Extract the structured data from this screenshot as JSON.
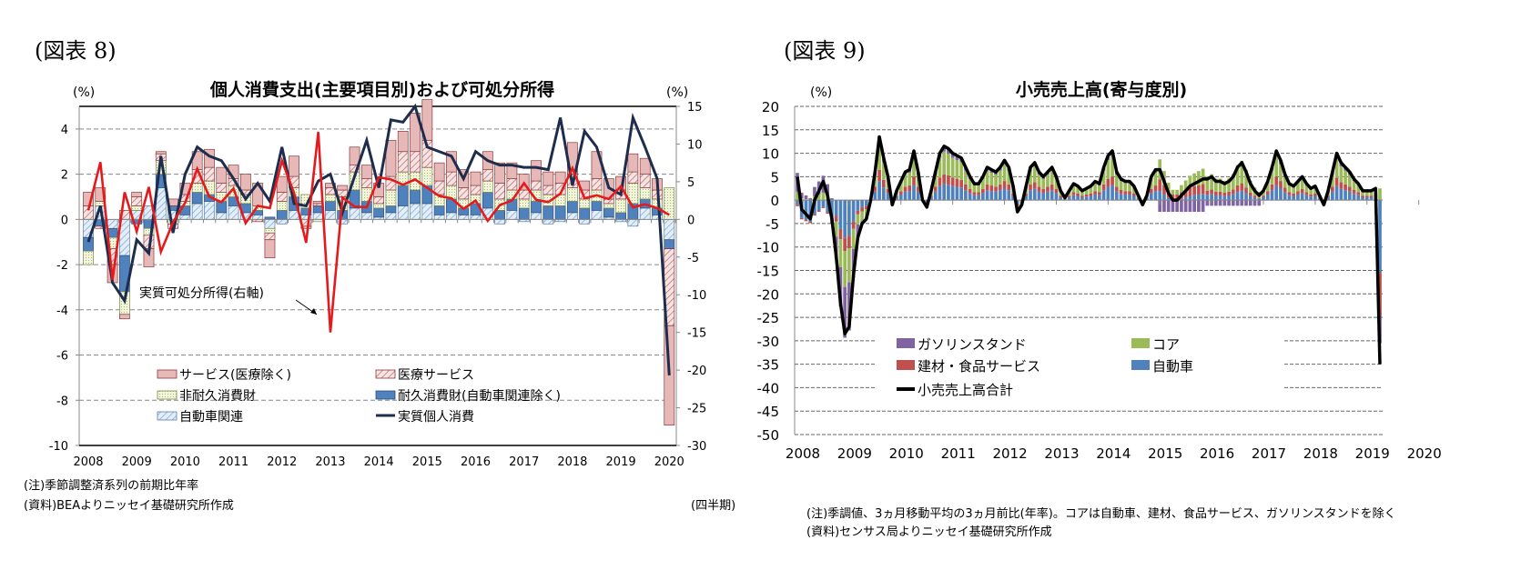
{
  "left": {
    "fig_label": "(図表 8)",
    "title": "個人消費支出(主要項目別)および可処分所得",
    "left_unit": "(%)",
    "right_unit": "(%)",
    "annotation": "実質可処分所得(右軸)",
    "note1": "(注)季節調整済系列の前期比年率",
    "note2": "(資料)BEAよりニッセイ基礎研究所作成",
    "period_label": "(四半期)"
  },
  "right": {
    "fig_label": "(図表 9)",
    "title": "小売売上高(寄与度別)",
    "unit": "(%)",
    "note1": "(注)季調値、3ヵ月移動平均の3ヵ月前比(年率)。コアは自動車、建材、食品サービス、ガソリンスタンドを除く",
    "note2": "(資料)センサス局よりニッセイ基礎研究所作成"
  },
  "chart_data": [
    {
      "type": "bar",
      "stacked": true,
      "title": "個人消費支出(主要項目別)および可処分所得",
      "frequency": "quarterly",
      "x_start": "2008Q1",
      "x_ticks": [
        "2008",
        "2009",
        "2010",
        "2011",
        "2012",
        "2013",
        "2014",
        "2015",
        "2016",
        "2017",
        "2018",
        "2019",
        "2020"
      ],
      "ylim": [
        -10,
        5
      ],
      "yticks": [
        -10,
        -8,
        -6,
        -4,
        -2,
        0,
        2,
        4
      ],
      "y2lim": [
        -30,
        15
      ],
      "y2ticks": [
        -30,
        -25,
        -20,
        -15,
        -10,
        -5,
        0,
        5,
        10,
        15
      ],
      "ylabel": "(%)",
      "y2label": "(%)",
      "xlabel": "(四半期)",
      "grid": true,
      "legend_position": "bottom-inside",
      "series": [
        {
          "name": "自動車関連",
          "color": "#c7dcef",
          "pattern": "hatch-blue",
          "values": [
            -0.8,
            0.6,
            -0.4,
            -1.6,
            0.4,
            0.6,
            1.4,
            0.4,
            0.2,
            0.7,
            0.8,
            0.3,
            0.6,
            0.3,
            0.2,
            -0.4,
            -0.2,
            0.4,
            0.2,
            0.3,
            0.4,
            -0.2,
            0.5,
            0.3,
            0.1,
            0.3,
            0.6,
            0.7,
            0.7,
            0.2,
            0.3,
            0.2,
            0.2,
            0.5,
            -0.2,
            0.4,
            -0.1,
            0.3,
            -0.2,
            -0.1,
            0.3,
            -0.2,
            0.4,
            0.1,
            -0.1,
            -0.3,
            0.5,
            0.2,
            -0.9
          ]
        },
        {
          "name": "耐久消費財(自動車関連除く)",
          "color": "#4f81bd",
          "pattern": "solid",
          "values": [
            -0.6,
            -0.3,
            -0.4,
            -1.6,
            -0.2,
            -0.4,
            0.6,
            0.2,
            0.4,
            0.5,
            0.3,
            0.5,
            0.4,
            0.4,
            0.2,
            0.1,
            0.4,
            0.6,
            0.3,
            0.3,
            0.4,
            0.4,
            0.8,
            0.5,
            0.4,
            0.3,
            0.9,
            0.6,
            0.8,
            0.4,
            0.6,
            0.3,
            0.5,
            0.7,
            0.4,
            0.5,
            0.5,
            0.5,
            0.6,
            0.6,
            0.5,
            0.5,
            0.4,
            0.4,
            0.3,
            0.7,
            0.4,
            0.3,
            -0.4
          ]
        },
        {
          "name": "非耐久消費財",
          "color": "#eef3d9",
          "pattern": "dots-green",
          "values": [
            -0.6,
            0.2,
            -0.5,
            -1.0,
            0.2,
            -0.3,
            0.6,
            -0.2,
            0.2,
            0.4,
            0.6,
            0.4,
            0.5,
            0.4,
            0.2,
            -0.2,
            0.4,
            0.4,
            0.6,
            -0.1,
            0.3,
            0.6,
            0.8,
            0.6,
            0.2,
            0.7,
            0.6,
            0.8,
            0.8,
            0.5,
            0.6,
            0.4,
            0.4,
            0.5,
            0.5,
            0.4,
            0.4,
            0.5,
            0.5,
            0.5,
            0.6,
            0.4,
            0.5,
            0.2,
            0.6,
            0.9,
            0.5,
            0.4,
            1.4
          ]
        },
        {
          "name": "医療サービス",
          "color": "#f2d5d5",
          "pattern": "hatch-red",
          "values": [
            0.6,
            -0.1,
            -0.7,
            0.4,
            0.4,
            -0.6,
            0.3,
            -0.2,
            0.3,
            0.6,
            0.6,
            0.4,
            0.3,
            0.2,
            -0.1,
            -0.3,
            0.4,
            0.5,
            -0.3,
            0.1,
            0.3,
            0.3,
            0.3,
            0.4,
            0.3,
            0.6,
            0.9,
            0.9,
            1.2,
            0.6,
            0.6,
            0.5,
            0.4,
            0.5,
            0.7,
            0.5,
            0.4,
            0.4,
            0.4,
            0.5,
            0.6,
            0.4,
            0.5,
            0.2,
            0.4,
            0.5,
            0.6,
            0.4,
            -3.4
          ]
        },
        {
          "name": "サービス(医療除く)",
          "color": "#e6b8b7",
          "pattern": "solid",
          "values": [
            0.6,
            0.6,
            -0.8,
            -0.2,
            0.2,
            -0.8,
            0.1,
            0.3,
            0.5,
            0.8,
            0.8,
            0.7,
            0.6,
            0.7,
            1.0,
            -0.8,
            0.7,
            0.9,
            -0.1,
            0.1,
            0.2,
            0.2,
            0.8,
            0.6,
            0.6,
            1.6,
            0.9,
            1.7,
            1.8,
            0.8,
            0.9,
            0.8,
            0.6,
            0.8,
            0.9,
            0.7,
            0.7,
            0.9,
            0.6,
            0.5,
            1.4,
            0.4,
            1.2,
            0.9,
            0.6,
            0.8,
            0.7,
            0.5,
            -4.4
          ]
        }
      ],
      "lines": [
        {
          "name": "実質個人消費",
          "color": "#1f2d4d",
          "axis": "left",
          "values": [
            -1.0,
            0.6,
            -2.8,
            -3.6,
            -0.9,
            -1.5,
            2.8,
            -0.6,
            2.0,
            3.2,
            2.8,
            2.6,
            1.8,
            0.9,
            1.6,
            0.8,
            3.2,
            0.7,
            0.6,
            1.7,
            2.0,
            0.3,
            1.9,
            3.5,
            1.4,
            4.4,
            4.3,
            5.0,
            3.2,
            3.0,
            2.8,
            1.8,
            3.0,
            2.6,
            2.4,
            2.4,
            2.3,
            2.3,
            2.2,
            4.5,
            1.5,
            3.9,
            3.2,
            1.4,
            1.1,
            4.5,
            3.2,
            1.8,
            -6.9
          ]
        },
        {
          "name": "実質可処分所得(右軸)",
          "color": "#e41a1c",
          "axis": "right",
          "values": [
            1.2,
            7.6,
            -8.0,
            3.6,
            -1.6,
            4.3,
            -4.3,
            -0.4,
            2.2,
            6.7,
            3.0,
            2.3,
            4.1,
            -0.5,
            1.8,
            1.5,
            7.8,
            3.5,
            -3.1,
            11.6,
            -15.0,
            2.9,
            1.7,
            1.6,
            5.6,
            5.3,
            4.6,
            5.3,
            4.2,
            3.1,
            2.8,
            1.4,
            2.5,
            -0.2,
            1.9,
            2.5,
            4.8,
            2.6,
            2.3,
            3.4,
            6.8,
            2.8,
            3.2,
            2.7,
            4.4,
            1.6,
            2.0,
            1.5,
            0.6
          ]
        }
      ]
    },
    {
      "type": "bar",
      "stacked": true,
      "title": "小売売上高(寄与度別)",
      "frequency": "monthly",
      "x_start": "2008-01",
      "x_ticks": [
        "2008",
        "2009",
        "2010",
        "2011",
        "2012",
        "2013",
        "2014",
        "2015",
        "2016",
        "2017",
        "2018",
        "2019",
        "2020"
      ],
      "ylim": [
        -50,
        20
      ],
      "yticks": [
        -50,
        -45,
        -40,
        -35,
        -30,
        -25,
        -20,
        -15,
        -10,
        -5,
        0,
        5,
        10,
        15,
        20
      ],
      "ylabel": "(%)",
      "grid": true,
      "legend_position": "bottom-inside",
      "series_names": [
        "自動車",
        "建材・食品サービス",
        "コア",
        "ガソリンスタンド"
      ],
      "series_colors": [
        "#4f81bd",
        "#c0504d",
        "#9bbb59",
        "#8064a2"
      ],
      "total_line": {
        "name": "小売売上高合計",
        "color": "#000000"
      },
      "total_values": [
        5,
        -2,
        -3,
        -4,
        0,
        2,
        4,
        1,
        -4,
        -12,
        -22,
        -28.5,
        -27,
        -16,
        -8,
        -5,
        -4,
        0,
        6,
        13.5,
        9,
        5,
        -1,
        2,
        4,
        6,
        6.5,
        10.5,
        6,
        0,
        -1.5,
        2,
        6,
        10,
        11.5,
        11,
        10,
        9.5,
        9,
        7,
        5,
        3.5,
        3.5,
        5,
        7,
        6.5,
        6,
        7,
        8.5,
        7,
        3,
        -2.5,
        -1,
        3,
        7,
        8,
        6,
        5,
        6,
        7,
        5,
        2,
        0.5,
        2,
        3.5,
        3,
        2,
        2.5,
        3,
        4,
        3.5,
        7,
        9.5,
        10.5,
        6,
        4.5,
        4,
        4,
        3,
        1,
        -1,
        1,
        5,
        6.5,
        6.5,
        4,
        1.5,
        0,
        0,
        1,
        2,
        3,
        3.5,
        4,
        4.5,
        4.5,
        5,
        4,
        4,
        3.5,
        4,
        5,
        7,
        8,
        6,
        3.5,
        2,
        1,
        2,
        4,
        7,
        10.5,
        8.5,
        5.5,
        3.5,
        3,
        4,
        5,
        3.5,
        2.5,
        3,
        1,
        -1,
        2,
        6,
        10,
        8,
        7,
        6,
        4.5,
        3.5,
        2,
        2,
        2,
        2.5,
        -35
      ],
      "component_values_note": "Stacked monthly contributions per total; see script arrays auto, gasoline, materials_food, core"
    }
  ],
  "legend": {
    "left": [
      "サービス(医療除く)",
      "医療サービス",
      "非耐久消費財",
      "耐久消費財(自動車関連除く)",
      "自動車関連",
      "実質個人消費"
    ],
    "right": [
      "ガソリンスタンド",
      "コア",
      "建材・食品サービス",
      "自動車",
      "小売売上高合計"
    ]
  }
}
